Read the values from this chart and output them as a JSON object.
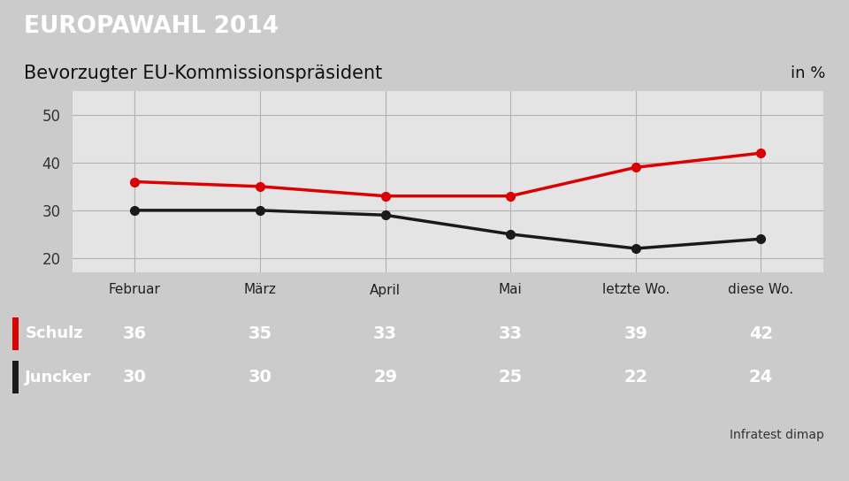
{
  "title_banner": "EUROPAWAHL 2014",
  "subtitle": "Bevorzugter EU-Kommissionspräsident",
  "subtitle_right": "in %",
  "categories": [
    "Februar",
    "März",
    "April",
    "Mai",
    "letzte Wo.",
    "diese Wo."
  ],
  "schulz": [
    36,
    35,
    33,
    33,
    39,
    42
  ],
  "juncker": [
    30,
    30,
    29,
    25,
    22,
    24
  ],
  "schulz_color": "#dd0000",
  "juncker_color": "#1a1a1a",
  "ylim": [
    17,
    55
  ],
  "yticks": [
    20,
    30,
    40,
    50
  ],
  "source": "Infratest dimap",
  "banner_color": "#1b3d7f",
  "table_bg_color": "#5b8fba",
  "bg_color": "#cbcbcb",
  "plot_bg_color": "#e4e4e4",
  "subtitle_bg_color": "#f0f0f0",
  "table_header_bg": "#f2f2f2",
  "grid_color": "#b0b0b0",
  "line_width": 2.5,
  "marker_size": 7
}
